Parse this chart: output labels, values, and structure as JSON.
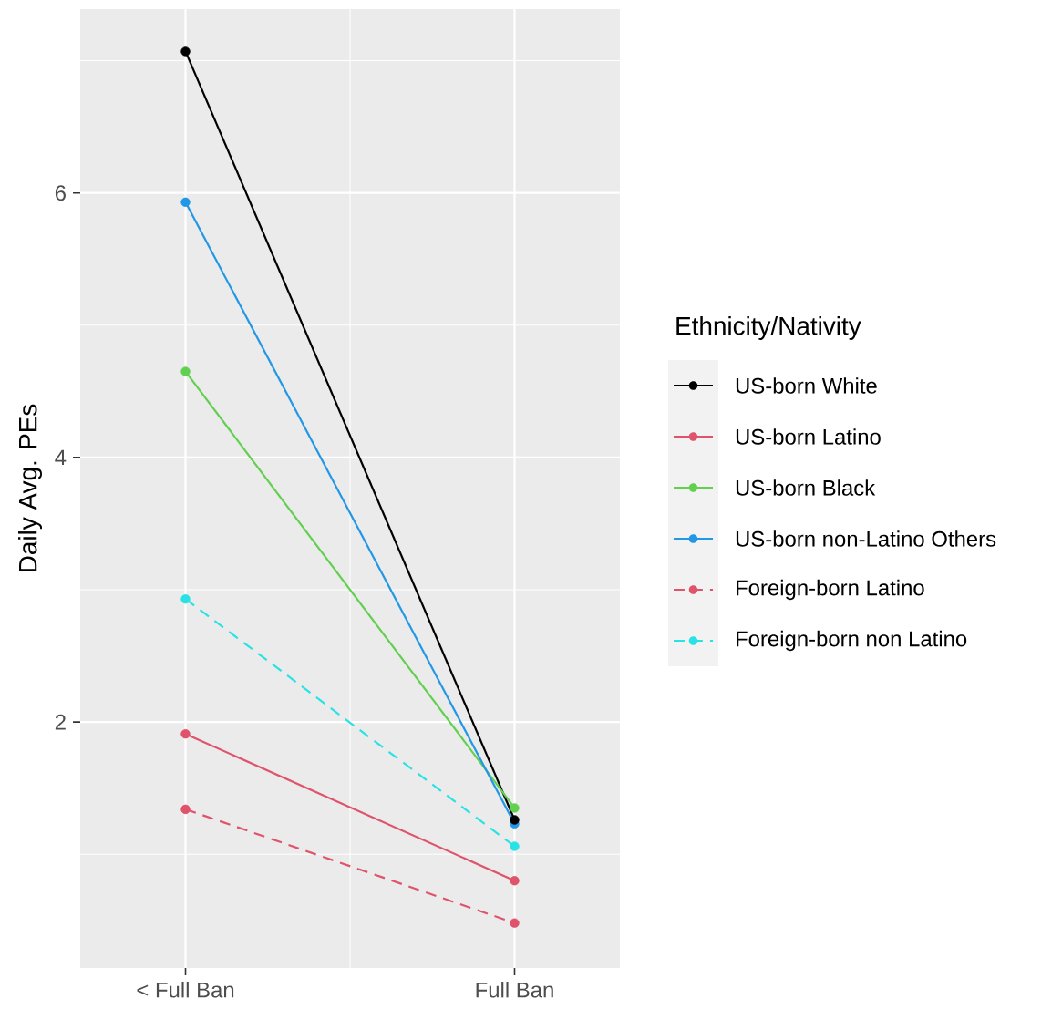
{
  "chart_data": {
    "type": "line",
    "categories": [
      "< Full Ban",
      "Full Ban"
    ],
    "ylabel": "Daily Avg. PEs",
    "legend_title": "Ethnicity/Nativity",
    "legend": "right",
    "marker": "circle",
    "grid": true,
    "ylim": [
      0.14,
      7.39
    ],
    "yticks": [
      2,
      4,
      6
    ],
    "series": [
      {
        "name": "US-born White",
        "color": "#000000",
        "line_style": "solid",
        "values": [
          7.07,
          1.26
        ]
      },
      {
        "name": "US-born Latino",
        "color": "#df536b",
        "line_style": "solid",
        "values": [
          1.91,
          0.8
        ]
      },
      {
        "name": "US-born Black",
        "color": "#61d04f",
        "line_style": "solid",
        "values": [
          4.65,
          1.35
        ]
      },
      {
        "name": "US-born non-Latino Others",
        "color": "#2297e6",
        "line_style": "solid",
        "values": [
          5.93,
          1.23
        ]
      },
      {
        "name": "Foreign-born Latino",
        "color": "#df536b",
        "line_style": "dashed",
        "values": [
          1.34,
          0.48
        ]
      },
      {
        "name": "Foreign-born non Latino",
        "color": "#28e2e5",
        "line_style": "dashed",
        "values": [
          2.93,
          1.06
        ]
      }
    ]
  }
}
